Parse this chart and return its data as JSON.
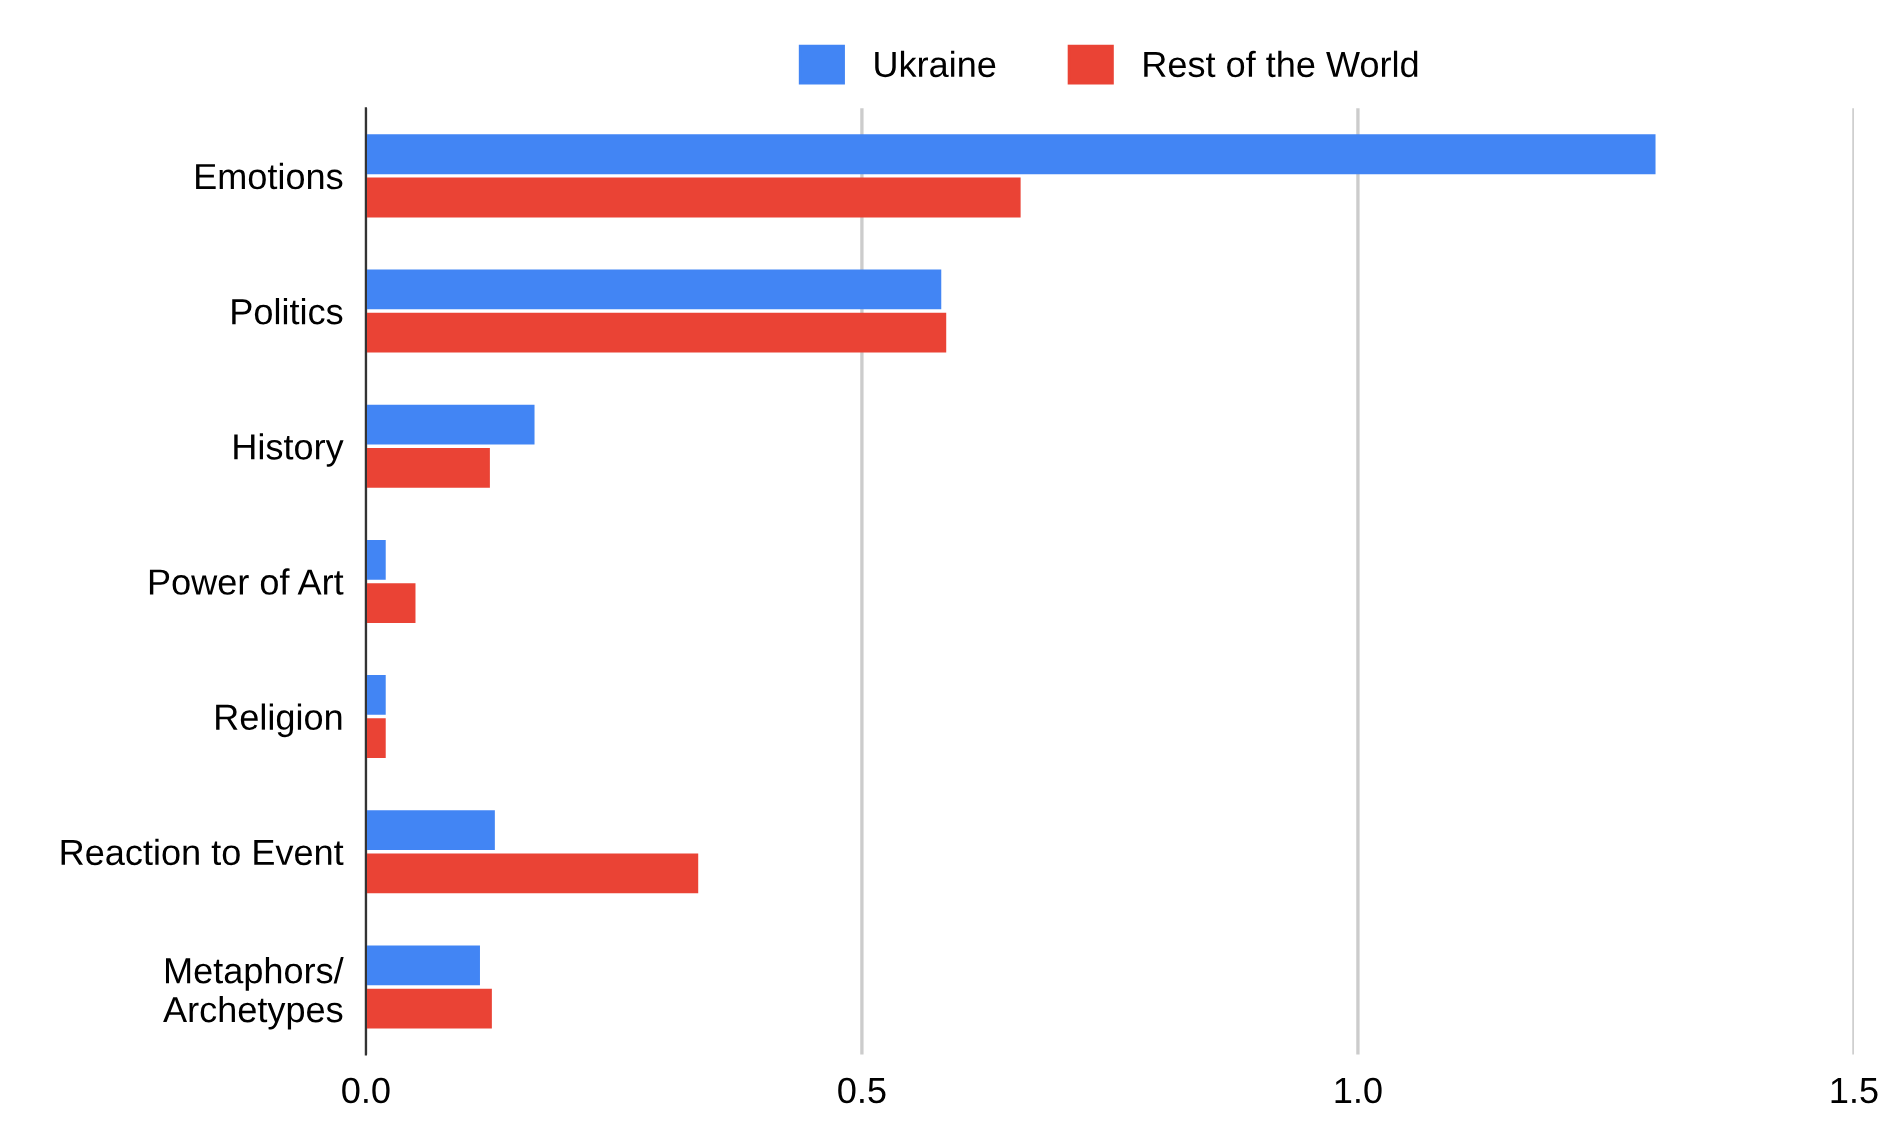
{
  "chart_data": {
    "type": "bar",
    "orientation": "horizontal",
    "categories": [
      "Emotions",
      "Politics",
      "History",
      "Power of Art",
      "Religion",
      "Reaction to Event",
      "Metaphors/\nArchetypes"
    ],
    "series": [
      {
        "name": "Ukraine",
        "color": "#4285f4",
        "values": [
          1.3,
          0.58,
          0.17,
          0.02,
          0.02,
          0.13,
          0.115
        ]
      },
      {
        "name": "Rest of the World",
        "color": "#ea4335",
        "values": [
          0.66,
          0.585,
          0.125,
          0.05,
          0.02,
          0.335,
          0.127
        ]
      }
    ],
    "xlim": [
      0,
      1.5
    ],
    "xticks": [
      {
        "value": 0,
        "label": "0.0"
      },
      0.5,
      {
        "value": 1,
        "label": "1.0"
      },
      1.5
    ],
    "grid": "x",
    "legend": "top"
  }
}
